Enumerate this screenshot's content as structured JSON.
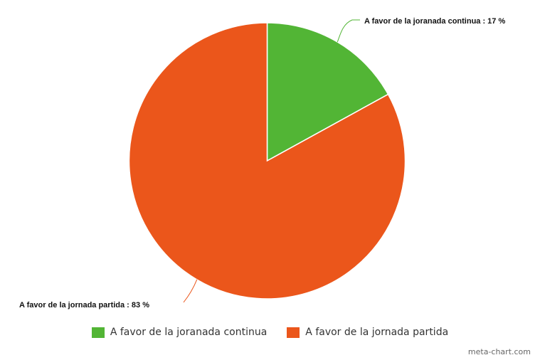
{
  "chart_data": {
    "type": "pie",
    "title": "",
    "slices": [
      {
        "label": "A favor de la joranada continua",
        "value": 17,
        "color": "#52b535",
        "data_label": "A favor de la joranada continua : 17 %"
      },
      {
        "label": "A favor de la jornada partida",
        "value": 83,
        "color": "#eb561b",
        "data_label": "A favor de la jornada partida : 83 %"
      }
    ],
    "legend_position": "bottom"
  },
  "legend": {
    "items": [
      {
        "label": "A favor de la joranada continua",
        "color": "#52b535"
      },
      {
        "label": "A favor de la jornada partida",
        "color": "#eb561b"
      }
    ]
  },
  "credit": "meta-chart.com"
}
